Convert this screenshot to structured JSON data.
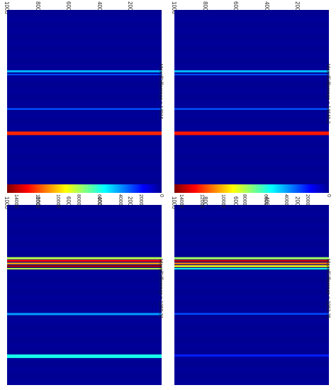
{
  "chart_data": [
    {
      "type": "heatmap",
      "title": "MaxofDifference = 14916",
      "x_ticks": [
        "200",
        "400",
        "600",
        "800",
        "1000"
      ],
      "xlim": [
        0,
        1000
      ],
      "clim": [
        0,
        14916
      ],
      "colormap": "jet",
      "bands": [
        {
          "at": 0.335,
          "width": 0.012,
          "value": 4500
        },
        {
          "at": 0.355,
          "width": 0.008,
          "value": 3000
        },
        {
          "at": 0.545,
          "width": 0.01,
          "value": 3000
        },
        {
          "at": 0.675,
          "width": 0.02,
          "value": 12500
        }
      ]
    },
    {
      "type": "heatmap",
      "title": "MaxofDifference = 14648.2",
      "x_ticks": [
        "200",
        "400",
        "600",
        "800",
        "1000"
      ],
      "xlim": [
        0,
        1000
      ],
      "clim": [
        0,
        14648.2
      ],
      "colormap": "jet",
      "bands": [
        {
          "at": 0.335,
          "width": 0.012,
          "value": 4500
        },
        {
          "at": 0.355,
          "width": 0.008,
          "value": 3000
        },
        {
          "at": 0.545,
          "width": 0.01,
          "value": 3000
        },
        {
          "at": 0.675,
          "width": 0.02,
          "value": 12500
        }
      ]
    },
    {
      "type": "heatmap",
      "title": "MaxofDifference = 1260.31",
      "x_ticks": [
        "200",
        "400",
        "600",
        "800",
        "1000"
      ],
      "xlim": [
        0,
        1000
      ],
      "clim": [
        0,
        1260.31
      ],
      "colormap": "jet",
      "bands": [
        {
          "at": 0.29,
          "width": 0.012,
          "value": 700
        },
        {
          "at": 0.305,
          "width": 0.01,
          "value": 1100
        },
        {
          "at": 0.32,
          "width": 0.01,
          "value": 900
        },
        {
          "at": 0.335,
          "width": 0.01,
          "value": 1200
        },
        {
          "at": 0.35,
          "width": 0.008,
          "value": 700
        },
        {
          "at": 0.6,
          "width": 0.012,
          "value": 350
        },
        {
          "at": 0.83,
          "width": 0.02,
          "value": 500
        }
      ]
    },
    {
      "type": "heatmap",
      "title": "MaxofDifference = 2262.75",
      "x_ticks": [
        "200",
        "400",
        "600",
        "800",
        "1000"
      ],
      "xlim": [
        0,
        1000
      ],
      "clim": [
        0,
        2262.75
      ],
      "colormap": "jet",
      "bands": [
        {
          "at": 0.29,
          "width": 0.012,
          "value": 1200
        },
        {
          "at": 0.305,
          "width": 0.01,
          "value": 2100
        },
        {
          "at": 0.32,
          "width": 0.01,
          "value": 1700
        },
        {
          "at": 0.335,
          "width": 0.01,
          "value": 1400
        },
        {
          "at": 0.35,
          "width": 0.008,
          "value": 900
        },
        {
          "at": 0.6,
          "width": 0.01,
          "value": 450
        },
        {
          "at": 0.83,
          "width": 0.012,
          "value": 350
        }
      ]
    }
  ],
  "colorbars": [
    {
      "ticks": [
        "0",
        "2000",
        "4000",
        "6000",
        "8000",
        "10000",
        "12000",
        "14000"
      ],
      "range": [
        0,
        14916
      ]
    },
    {
      "ticks": [
        "0",
        "2000",
        "4000",
        "6000",
        "8000",
        "10000",
        "12000",
        "14000"
      ],
      "range": [
        0,
        14648.2
      ]
    }
  ]
}
